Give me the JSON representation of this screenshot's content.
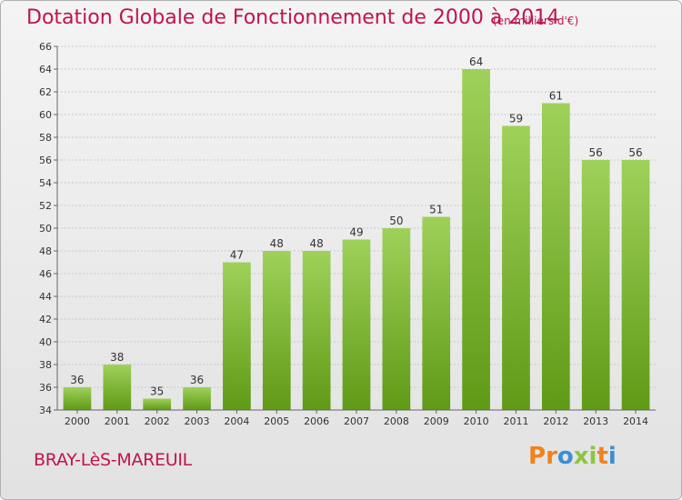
{
  "colors": {
    "title": "#c0144c",
    "bar_top": "#9fd15a",
    "bar_bottom": "#5f9a16",
    "grid": "#c9c9c9",
    "logo": [
      "#f0821e",
      "#f0821e",
      "#3a8fd6",
      "#8cc63f",
      "#8cc63f",
      "#f0821e",
      "#3a8fd6"
    ]
  },
  "footer": {
    "location": "BRAY-LèS-MAREUIL",
    "logo_text": "Proxiti"
  },
  "chart_data": {
    "type": "bar",
    "title": "Dotation Globale de Fonctionnement de 2000 à 2014",
    "unit": "(en milliers d'€)",
    "categories": [
      "2000",
      "2001",
      "2002",
      "2003",
      "2004",
      "2005",
      "2006",
      "2007",
      "2008",
      "2009",
      "2010",
      "2011",
      "2012",
      "2013",
      "2014"
    ],
    "values": [
      36,
      38,
      35,
      36,
      47,
      48,
      48,
      49,
      50,
      51,
      64,
      59,
      61,
      56,
      56
    ],
    "ylim": [
      34,
      66
    ],
    "yticks": [
      34,
      36,
      38,
      40,
      42,
      44,
      46,
      48,
      50,
      52,
      54,
      56,
      58,
      60,
      62,
      64,
      66
    ],
    "grid": true,
    "legend": "none"
  }
}
